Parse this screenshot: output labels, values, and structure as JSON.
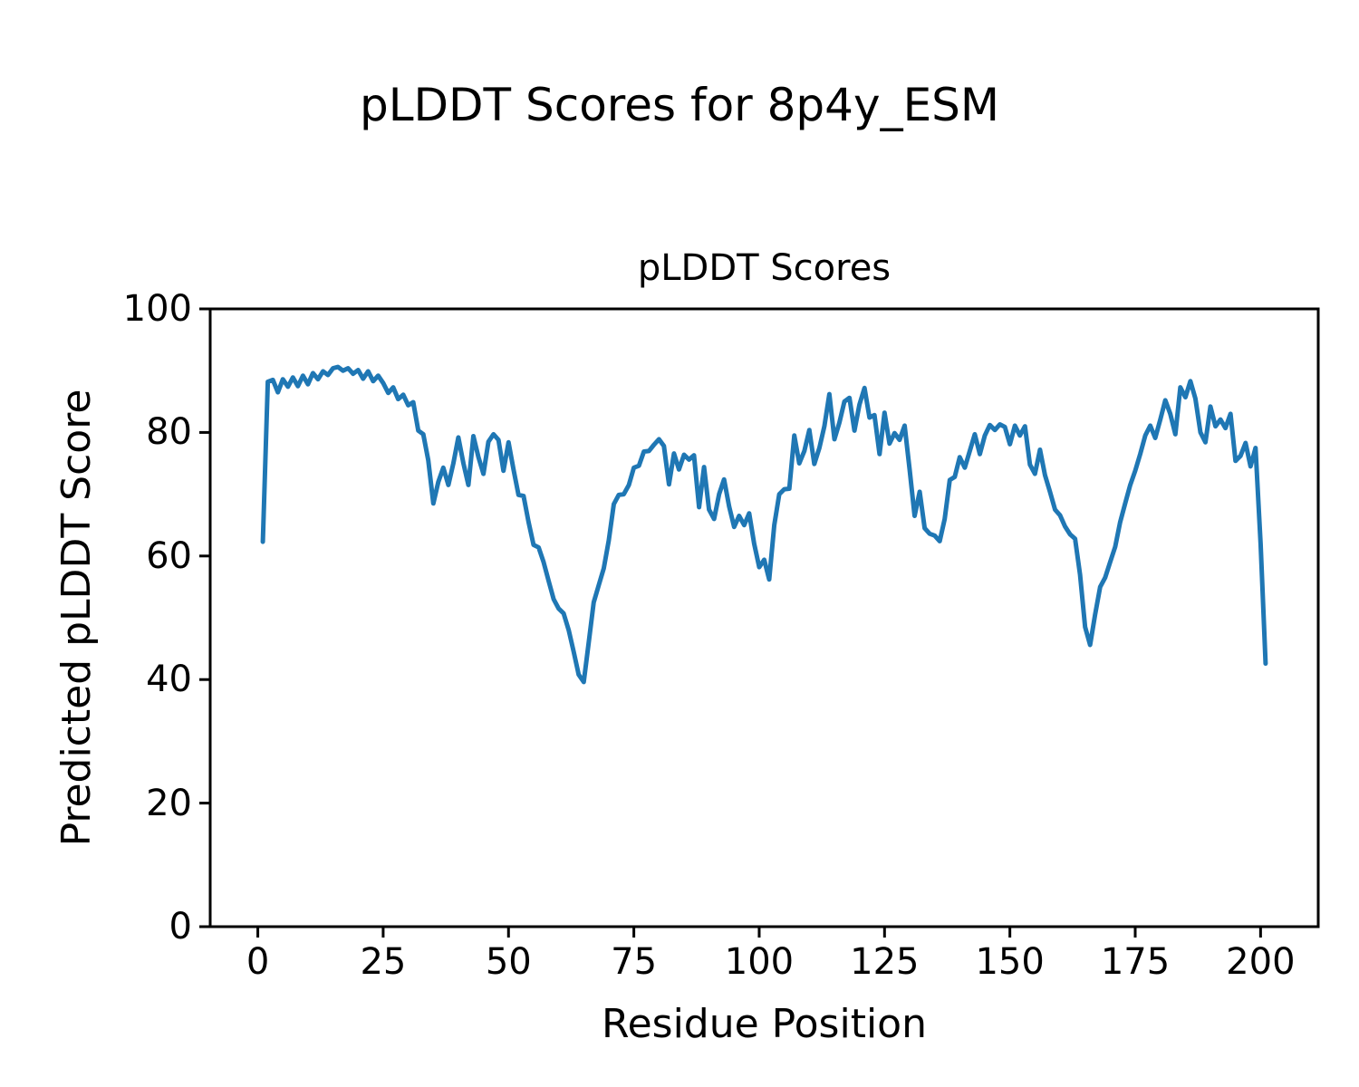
{
  "figure": {
    "title": "pLDDT Scores for 8p4y_ESM",
    "background_color": "#ffffff",
    "text_color": "#000000"
  },
  "chart_data": {
    "type": "line",
    "title": "pLDDT Scores",
    "xlabel": "Residue Position",
    "ylabel": "Predicted pLDDT Score",
    "xlim": [
      -9.5,
      211.5
    ],
    "ylim": [
      0,
      100
    ],
    "x_ticks": [
      0,
      25,
      50,
      75,
      100,
      125,
      150,
      175,
      200
    ],
    "y_ticks": [
      0,
      20,
      40,
      60,
      80,
      100
    ],
    "grid": false,
    "legend": "none",
    "line_color": "#1f77b4",
    "axis_color": "#000000",
    "series": [
      {
        "name": "pLDDT",
        "x_start": 1,
        "x_step": 1,
        "values": [
          62.3,
          88.2,
          88.5,
          86.5,
          88.6,
          87.4,
          88.9,
          87.5,
          89.2,
          87.8,
          89.6,
          88.6,
          89.9,
          89.3,
          90.4,
          90.6,
          90.0,
          90.4,
          89.5,
          90.1,
          88.7,
          89.9,
          88.3,
          89.2,
          88.0,
          86.4,
          87.3,
          85.4,
          86.1,
          84.4,
          84.9,
          80.3,
          79.7,
          75.5,
          68.5,
          72.0,
          74.3,
          71.5,
          75.0,
          79.2,
          75.0,
          71.5,
          79.4,
          76.0,
          73.3,
          78.5,
          79.7,
          78.8,
          73.8,
          78.4,
          74.0,
          69.9,
          69.7,
          65.5,
          61.8,
          61.4,
          59.0,
          56.0,
          53.0,
          51.5,
          50.7,
          48.0,
          44.5,
          40.8,
          39.6,
          46.0,
          52.5,
          55.3,
          58.0,
          62.5,
          68.4,
          69.9,
          70.0,
          71.5,
          74.3,
          74.6,
          76.9,
          77.0,
          78.0,
          78.9,
          77.8,
          71.6,
          76.6,
          74.0,
          76.4,
          75.6,
          76.3,
          67.9,
          74.4,
          67.5,
          66.0,
          70.0,
          72.4,
          68.0,
          64.7,
          66.5,
          65.0,
          66.9,
          62.0,
          58.2,
          59.4,
          56.2,
          65.0,
          70.0,
          70.8,
          70.9,
          79.5,
          75.0,
          77.0,
          80.4,
          74.9,
          77.5,
          81.0,
          86.2,
          78.9,
          81.6,
          85.0,
          85.6,
          80.3,
          84.5,
          87.2,
          82.4,
          82.8,
          76.5,
          83.2,
          78.2,
          79.9,
          78.8,
          81.1,
          74.0,
          66.5,
          70.4,
          64.5,
          63.6,
          63.3,
          62.4,
          66.0,
          72.3,
          72.8,
          76.0,
          74.3,
          77.0,
          79.7,
          76.5,
          79.5,
          81.2,
          80.4,
          81.3,
          80.9,
          78.1,
          81.1,
          79.5,
          81.0,
          74.8,
          73.3,
          77.2,
          73.1,
          70.4,
          67.5,
          66.6,
          64.8,
          63.5,
          62.8,
          57.0,
          48.5,
          45.6,
          50.5,
          55.0,
          56.5,
          59.0,
          61.5,
          65.5,
          68.5,
          71.5,
          73.8,
          76.5,
          79.5,
          81.1,
          79.1,
          82.1,
          85.2,
          83.0,
          79.7,
          87.3,
          85.7,
          88.3,
          85.5,
          80.0,
          78.4,
          84.2,
          81.0,
          82.1,
          80.7,
          83.0,
          75.4,
          76.2,
          78.3,
          74.5,
          77.5,
          62.0,
          42.6
        ]
      }
    ]
  }
}
